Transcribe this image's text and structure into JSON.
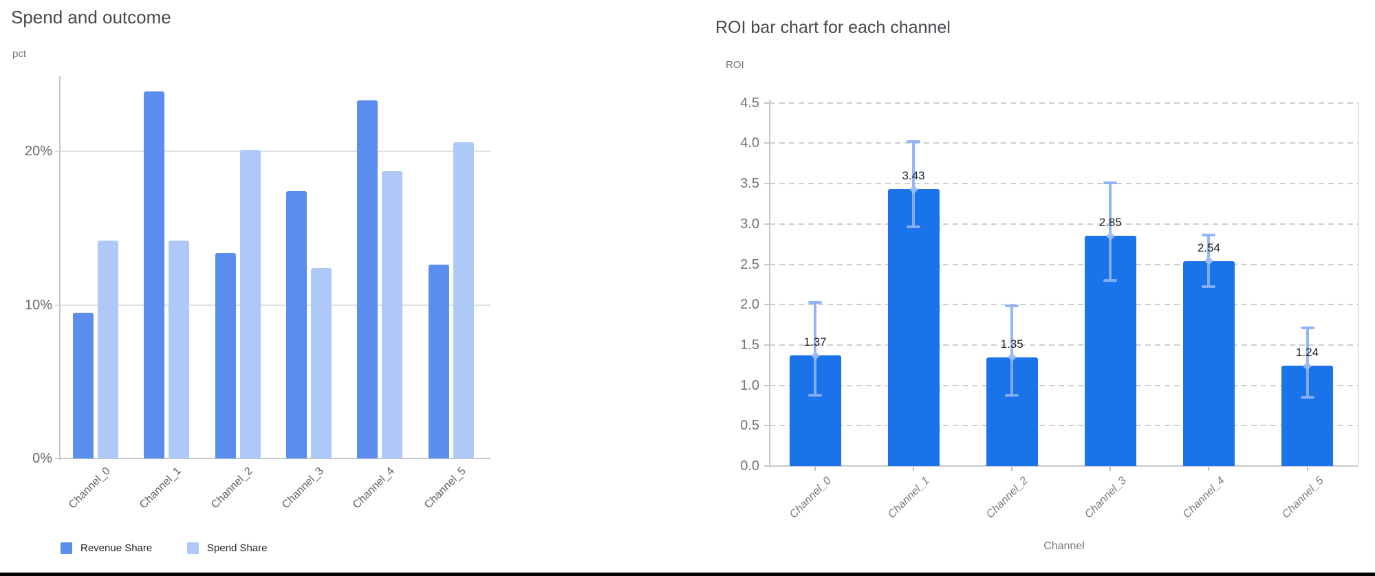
{
  "left_chart": {
    "title": "Spend and outcome",
    "y_axis_unit": "pct"
  },
  "right_chart": {
    "title": "ROI bar chart for each channel",
    "y_axis_unit": "ROI",
    "x_axis_title": "Channel"
  },
  "chart_data": [
    {
      "type": "bar",
      "title": "Spend and outcome",
      "ylabel": "pct",
      "categories": [
        "Channel_0",
        "Channel_1",
        "Channel_2",
        "Channel_3",
        "Channel_4",
        "Channel_5"
      ],
      "series": [
        {
          "name": "Revenue Share",
          "color": "#5b8def",
          "values": [
            9.5,
            23.9,
            13.4,
            17.4,
            23.3,
            12.6
          ]
        },
        {
          "name": "Spend Share",
          "color": "#aec9f8",
          "values": [
            14.2,
            14.2,
            20.1,
            12.4,
            18.7,
            20.6
          ]
        }
      ],
      "y_ticks": {
        "values": [
          0,
          10,
          20
        ],
        "labels": [
          "0%",
          "10%",
          "20%"
        ]
      },
      "ylim": [
        0,
        25
      ],
      "grid": "solid",
      "legend_position": "bottom",
      "unit": "percent"
    },
    {
      "type": "bar",
      "title": "ROI bar chart for each channel",
      "xlabel": "Channel",
      "ylabel": "ROI",
      "categories": [
        "Channel_0",
        "Channel_1",
        "Channel_2",
        "Channel_3",
        "Channel_4",
        "Channel_5"
      ],
      "values": [
        1.37,
        3.43,
        1.35,
        2.85,
        2.54,
        1.24
      ],
      "data_labels": [
        "1.37",
        "3.43",
        "1.35",
        "2.85",
        "2.54",
        "1.24"
      ],
      "error_low": [
        0.88,
        2.96,
        0.88,
        2.3,
        2.22,
        0.85
      ],
      "error_high": [
        2.04,
        4.03,
        1.99,
        3.52,
        2.87,
        1.72
      ],
      "bar_color": "#1a73e8",
      "error_bar_color": "#8ab0f4",
      "error_marker_color": "#9dbcf8",
      "y_ticks": {
        "values": [
          0,
          0.5,
          1,
          1.5,
          2,
          2.5,
          3,
          3.5,
          4,
          4.5
        ],
        "labels": [
          "0.0",
          "0.5",
          "1.0",
          "1.5",
          "2.0",
          "2.5",
          "3.0",
          "3.5",
          "4.0",
          "4.5"
        ]
      },
      "ylim": [
        0,
        4.5
      ],
      "grid": "dashed",
      "legend_position": "none"
    }
  ],
  "window": {
    "bottom_border_color": "#000000"
  }
}
